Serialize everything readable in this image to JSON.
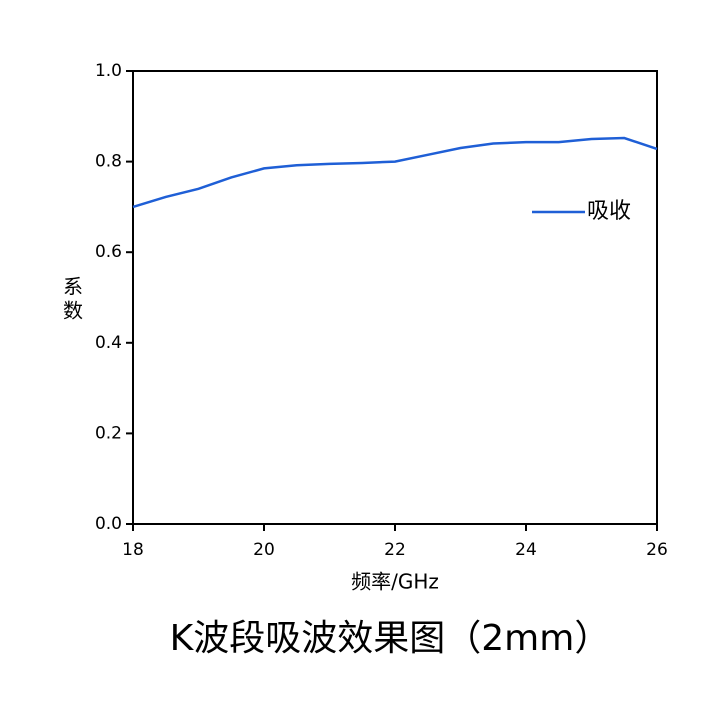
{
  "chart_data": {
    "type": "line",
    "title": "K波段吸波效果图（2mm）",
    "x_label": "频率/GHz",
    "y_label": "系数",
    "x": [
      18,
      18.5,
      19,
      19.5,
      20,
      20.5,
      21,
      21.5,
      22,
      22.5,
      23,
      23.5,
      24,
      24.5,
      25,
      25.5,
      26
    ],
    "series": [
      {
        "name": "吸收",
        "color": "#1f5fd6",
        "values": [
          0.7,
          0.722,
          0.74,
          0.765,
          0.785,
          0.792,
          0.795,
          0.797,
          0.8,
          0.815,
          0.83,
          0.84,
          0.843,
          0.843,
          0.85,
          0.852,
          0.828
        ]
      }
    ],
    "xlim": [
      18,
      26
    ],
    "xticks": [
      18,
      20,
      22,
      24,
      26
    ],
    "ylim": [
      0,
      1
    ],
    "yticks": [
      {
        "value": 0,
        "label": "0.0"
      },
      0.2,
      0.4,
      0.6,
      0.8,
      {
        "value": 1,
        "label": "1.0"
      }
    ],
    "legend": "right"
  }
}
